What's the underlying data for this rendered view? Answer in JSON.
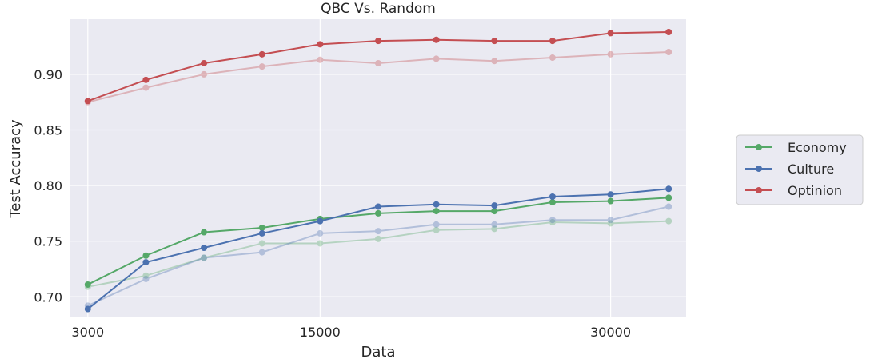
{
  "chart_data": {
    "type": "line",
    "title": "QBC Vs. Random",
    "xlabel": "Data",
    "ylabel": "Test Accuracy",
    "x": [
      3000,
      6000,
      9000,
      12000,
      15000,
      18000,
      21000,
      24000,
      27000,
      30000,
      33000
    ],
    "xticks": [
      3000,
      15000,
      30000
    ],
    "xtick_labels": [
      "3000",
      "15000",
      "30000"
    ],
    "xlim": [
      2100,
      33900
    ],
    "ylim": [
      0.6815,
      0.9495
    ],
    "yticks": [
      0.7,
      0.75,
      0.8,
      0.85,
      0.9
    ],
    "ytick_labels": [
      "0.70",
      "0.75",
      "0.80",
      "0.85",
      "0.90"
    ],
    "grid": true,
    "legend_position": "right",
    "series": [
      {
        "name": "Economy",
        "color": "#55a868",
        "values": [
          0.711,
          0.737,
          0.758,
          0.762,
          0.77,
          0.775,
          0.777,
          0.777,
          0.785,
          0.786,
          0.789
        ]
      },
      {
        "name": "Culture",
        "color": "#4c72b0",
        "values": [
          0.689,
          0.731,
          0.744,
          0.757,
          0.768,
          0.781,
          0.783,
          0.782,
          0.79,
          0.792,
          0.797
        ]
      },
      {
        "name": "Optinion",
        "color": "#c44e52",
        "values": [
          0.876,
          0.895,
          0.91,
          0.918,
          0.927,
          0.93,
          0.931,
          0.93,
          0.93,
          0.937,
          0.938
        ]
      },
      {
        "color": "#55a868",
        "faded": true,
        "values": [
          0.709,
          0.719,
          0.735,
          0.748,
          0.748,
          0.752,
          0.76,
          0.761,
          0.767,
          0.766,
          0.768
        ]
      },
      {
        "color": "#4c72b0",
        "faded": true,
        "values": [
          0.692,
          0.716,
          0.735,
          0.74,
          0.757,
          0.759,
          0.765,
          0.765,
          0.769,
          0.769,
          0.781
        ]
      },
      {
        "color": "#c44e52",
        "faded": true,
        "values": [
          0.875,
          0.888,
          0.9,
          0.907,
          0.913,
          0.91,
          0.914,
          0.912,
          0.915,
          0.918,
          0.92
        ]
      }
    ],
    "colors": {
      "plot_background": "#eaeaf2",
      "grid": "#ffffff",
      "text": "#262626"
    }
  }
}
